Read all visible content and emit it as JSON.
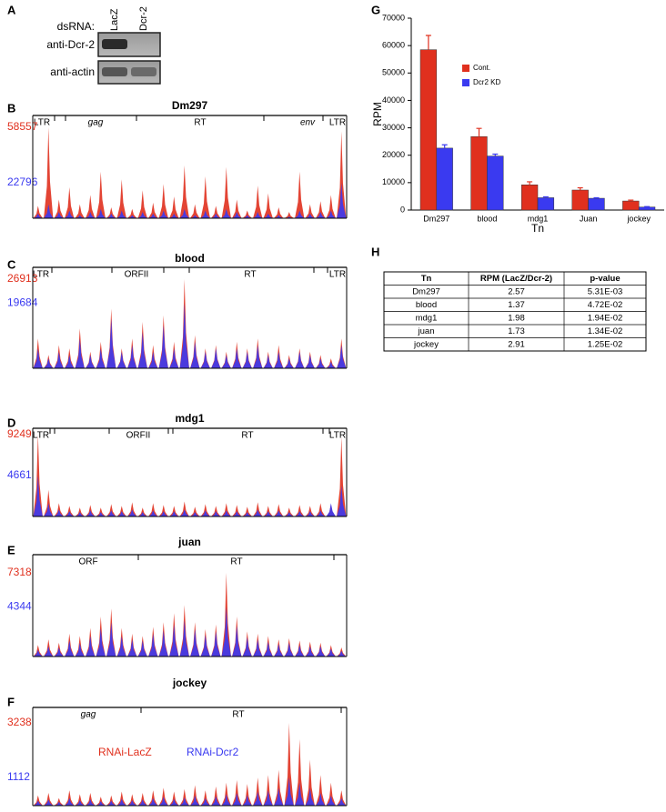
{
  "panel_a": {
    "letter": "A",
    "row_label": "dsRNA:",
    "lanes": [
      "LacZ",
      "Dcr-2"
    ],
    "blots": [
      "anti-Dcr-2",
      "anti-actin"
    ]
  },
  "coverage": [
    {
      "letter": "B",
      "title": "Dm297",
      "segments": [
        "LTR",
        "gag",
        "RT",
        "env",
        "LTR"
      ],
      "red_max": 58557,
      "blue_max": 22796,
      "red": [
        8000,
        58557,
        12000,
        20000,
        9000,
        15000,
        30000,
        7000,
        25000,
        6000,
        18000,
        10000,
        22000,
        14000,
        34000,
        9000,
        27000,
        8000,
        33000,
        12000,
        5000,
        21000,
        16000,
        7000,
        4000,
        30000,
        9000,
        11000,
        15000,
        56000
      ],
      "blue": [
        3000,
        9000,
        4000,
        5000,
        2000,
        4000,
        6000,
        3000,
        5000,
        2000,
        4000,
        3000,
        5000,
        3000,
        6000,
        2000,
        5000,
        3000,
        6000,
        4000,
        2000,
        4000,
        3000,
        2000,
        1000,
        5000,
        3000,
        4000,
        5000,
        22796
      ]
    },
    {
      "letter": "C",
      "title": "blood",
      "segments": [
        "LTR",
        "ORFII",
        "RT",
        "LTR"
      ],
      "red_max": 26913,
      "blue_max": 19684,
      "red": [
        9000,
        4000,
        7000,
        6000,
        12000,
        5000,
        8000,
        18000,
        6000,
        9000,
        14000,
        7000,
        16000,
        8000,
        26913,
        10000,
        6000,
        7000,
        5000,
        8000,
        6000,
        9000,
        5000,
        7000,
        4000,
        6000,
        5000,
        4000,
        3000,
        9000
      ],
      "blue": [
        6000,
        3000,
        5000,
        4000,
        9000,
        4000,
        6000,
        15000,
        5000,
        7000,
        11000,
        5000,
        13000,
        6000,
        19684,
        8000,
        5000,
        6000,
        4000,
        6000,
        5000,
        7000,
        4000,
        5000,
        3000,
        5000,
        4000,
        3000,
        2000,
        7000
      ]
    },
    {
      "letter": "D",
      "title": "mdg1",
      "segments": [
        "LTR",
        "ORFII",
        "RT",
        "LTR"
      ],
      "red_max": 9249,
      "blue_max": 4661,
      "red": [
        9249,
        3000,
        1500,
        1200,
        1000,
        1300,
        1000,
        1400,
        1200,
        1600,
        1000,
        1500,
        1300,
        1200,
        1700,
        1100,
        1400,
        1200,
        1500,
        1300,
        1100,
        1600,
        1200,
        1400,
        1000,
        1300,
        1200,
        1500,
        1400,
        9000
      ],
      "blue": [
        4661,
        1500,
        800,
        600,
        500,
        700,
        500,
        700,
        600,
        800,
        500,
        700,
        600,
        600,
        800,
        500,
        700,
        600,
        700,
        600,
        500,
        800,
        600,
        700,
        500,
        600,
        600,
        700,
        1500,
        3500
      ]
    },
    {
      "letter": "E",
      "title": "juan",
      "segments": [
        "ORF",
        "RT"
      ],
      "red_max": 7318,
      "blue_max": 4344,
      "red": [
        1000,
        1500,
        1200,
        2000,
        1800,
        2500,
        3500,
        4200,
        2500,
        2000,
        1800,
        2600,
        3000,
        3800,
        4500,
        3000,
        2400,
        2800,
        7318,
        3500,
        2200,
        2000,
        1800,
        1500,
        1600,
        1400,
        1300,
        1200,
        1000,
        800
      ],
      "blue": [
        600,
        900,
        800,
        1400,
        1200,
        1800,
        2500,
        3000,
        1800,
        1500,
        1400,
        2000,
        2300,
        2800,
        3200,
        2400,
        1900,
        2200,
        4344,
        2700,
        1700,
        1500,
        1300,
        1100,
        1200,
        1000,
        900,
        900,
        700,
        500
      ]
    },
    {
      "letter": "F",
      "title": "jockey",
      "segments": [
        "gag",
        "RT"
      ],
      "red_max": 3238,
      "blue_max": 1112,
      "legend": [
        "RNAi-LacZ",
        "RNAi-Dcr2"
      ],
      "red": [
        400,
        500,
        300,
        600,
        450,
        500,
        350,
        400,
        550,
        450,
        500,
        600,
        700,
        550,
        650,
        800,
        600,
        750,
        900,
        1000,
        850,
        1100,
        1200,
        1400,
        3238,
        2600,
        1800,
        1200,
        900,
        600
      ],
      "blue": [
        200,
        250,
        150,
        300,
        220,
        250,
        180,
        200,
        270,
        220,
        250,
        300,
        350,
        270,
        320,
        400,
        300,
        380,
        450,
        500,
        420,
        550,
        600,
        700,
        1112,
        900,
        700,
        500,
        400,
        300
      ]
    }
  ],
  "chart_data": {
    "type": "bar",
    "letter": "G",
    "x_label": "Tn",
    "y_label": "RPM",
    "categories": [
      "Dm297",
      "blood",
      "mdg1",
      "Juan",
      "jockey"
    ],
    "series": [
      {
        "name": "Cont.",
        "color": "#e0301e",
        "values": [
          58500,
          26800,
          9200,
          7300,
          3300
        ],
        "errors": [
          5200,
          3000,
          1100,
          800,
          300
        ]
      },
      {
        "name": "Dcr2 KD",
        "color": "#3a3af0",
        "values": [
          22600,
          19700,
          4500,
          4300,
          1100
        ],
        "errors": [
          1200,
          700,
          300,
          200,
          150
        ]
      }
    ],
    "ylim": [
      0,
      70000
    ],
    "yticks": [
      0,
      10000,
      20000,
      30000,
      40000,
      50000,
      60000,
      70000
    ],
    "grid": false
  },
  "table": {
    "letter": "H",
    "header": [
      "Tn",
      "RPM (LacZ/Dcr-2)",
      "p-value"
    ],
    "rows": [
      [
        "Dm297",
        "2.57",
        "5.31E-03"
      ],
      [
        "blood",
        "1.37",
        "4.72E-02"
      ],
      [
        "mdg1",
        "1.98",
        "1.94E-02"
      ],
      [
        "juan",
        "1.73",
        "1.34E-02"
      ],
      [
        "jockey",
        "2.91",
        "1.25E-02"
      ]
    ]
  }
}
